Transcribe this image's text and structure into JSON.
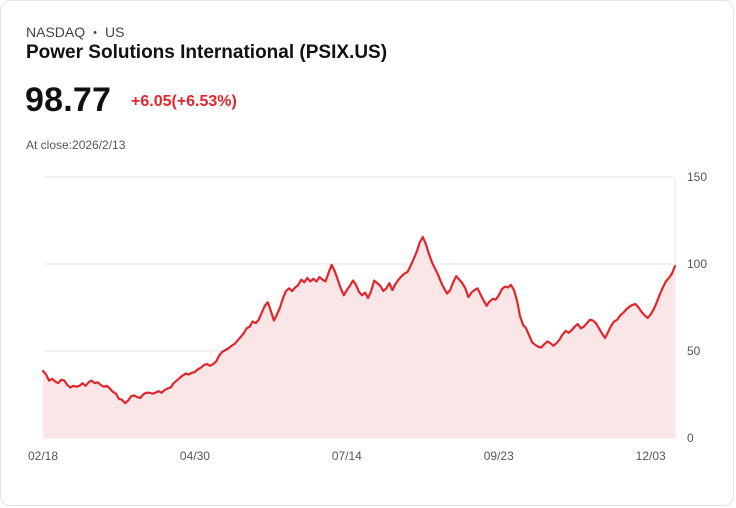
{
  "header": {
    "exchange": "NASDAQ",
    "separator": "•",
    "market": "US",
    "company": "Power Solutions International (PSIX.US)"
  },
  "quote": {
    "price": "98.77",
    "change": "+6.05(+6.53%)",
    "close_label": "At close:2026/2/13"
  },
  "colors": {
    "line": "#e0262c",
    "fill": "#fbe6e7",
    "grid": "#e6e6e6"
  },
  "chart_data": {
    "type": "area",
    "title": "",
    "xlabel": "",
    "ylabel": "",
    "ylim": [
      0,
      150
    ],
    "y_ticks": [
      "150",
      "100",
      "50",
      "0"
    ],
    "y_tick_values": [
      150,
      100,
      50,
      0
    ],
    "x_tick_labels": [
      "02/18",
      "04/30",
      "07/14",
      "09/23",
      "12/03"
    ],
    "x_tick_index": [
      0,
      50,
      100,
      150,
      200
    ],
    "grid": true,
    "y_axis_side": "right",
    "series": [
      {
        "name": "PSIX.US",
        "values": [
          38.5,
          36.5,
          33.0,
          34.0,
          32.5,
          31.5,
          33.5,
          33.0,
          30.5,
          29.0,
          30.0,
          29.5,
          30.0,
          31.5,
          30.0,
          32.0,
          33.0,
          31.5,
          32.0,
          30.5,
          29.5,
          30.0,
          28.5,
          26.5,
          25.5,
          22.5,
          22.0,
          20.0,
          21.5,
          24.0,
          24.5,
          23.5,
          23.0,
          25.0,
          26.0,
          26.0,
          25.5,
          26.0,
          27.0,
          26.0,
          27.5,
          28.5,
          29.0,
          31.5,
          33.0,
          34.5,
          36.0,
          37.0,
          36.5,
          37.5,
          38.0,
          39.5,
          40.5,
          42.0,
          42.5,
          41.5,
          42.5,
          44.0,
          47.5,
          49.5,
          50.5,
          51.5,
          53.0,
          54.0,
          56.0,
          58.0,
          60.0,
          63.0,
          64.0,
          67.0,
          66.0,
          68.0,
          72.0,
          76.0,
          78.0,
          73.0,
          67.5,
          71.0,
          75.0,
          80.5,
          84.5,
          86.0,
          84.5,
          86.5,
          88.0,
          91.0,
          89.5,
          92.0,
          90.0,
          91.5,
          90.0,
          92.5,
          91.0,
          90.0,
          95.0,
          99.5,
          96.0,
          91.0,
          86.0,
          82.0,
          85.0,
          87.5,
          90.5,
          88.0,
          84.0,
          82.0,
          83.5,
          80.5,
          84.5,
          90.5,
          89.0,
          87.5,
          84.5,
          86.0,
          89.0,
          85.0,
          88.5,
          91.0,
          93.0,
          94.5,
          95.5,
          99.0,
          103.0,
          107.0,
          112.5,
          115.5,
          111.5,
          106.0,
          101.0,
          97.5,
          94.0,
          89.5,
          86.0,
          83.0,
          85.0,
          89.5,
          93.0,
          91.0,
          89.0,
          86.0,
          81.0,
          83.5,
          85.0,
          86.0,
          82.5,
          79.0,
          76.0,
          78.5,
          80.0,
          79.5,
          82.0,
          85.5,
          87.0,
          86.5,
          88.0,
          85.0,
          79.0,
          70.0,
          65.0,
          63.0,
          59.0,
          55.0,
          53.5,
          52.5,
          52.0,
          54.0,
          55.5,
          54.5,
          53.0,
          54.5,
          56.5,
          59.5,
          61.5,
          60.5,
          62.0,
          64.0,
          65.5,
          63.0,
          64.0,
          66.0,
          68.0,
          67.5,
          66.0,
          63.0,
          60.0,
          57.5,
          61.0,
          64.5,
          67.0,
          68.0,
          70.5,
          72.0,
          74.0,
          75.5,
          76.5,
          77.0,
          75.0,
          72.5,
          70.5,
          69.0,
          71.0,
          74.0,
          78.0,
          82.5,
          86.5,
          90.0,
          92.0,
          94.5,
          98.77
        ],
        "line_style": "solid",
        "fill": "area"
      }
    ]
  }
}
